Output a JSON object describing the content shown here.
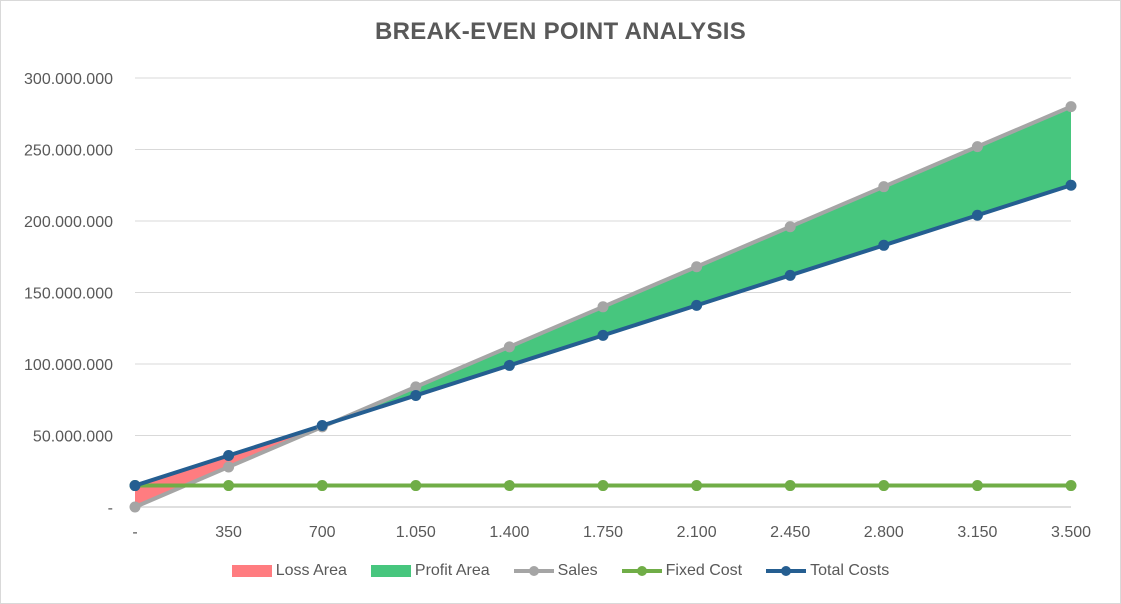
{
  "chart_data": {
    "type": "line",
    "title": "BREAK-EVEN POINT ANALYSIS",
    "xlabel": "",
    "ylabel": "",
    "x_tick_labels": [
      "-",
      "350",
      "700",
      "1.050",
      "1.400",
      "1.750",
      "2.100",
      "2.450",
      "2.800",
      "3.150",
      "3.500"
    ],
    "x": [
      0,
      350,
      700,
      1050,
      1400,
      1750,
      2100,
      2450,
      2800,
      3150,
      3500
    ],
    "xlim": [
      0,
      3500
    ],
    "y_tick_labels": [
      "-",
      "50.000.000",
      "100.000.000",
      "150.000.000",
      "200.000.000",
      "250.000.000",
      "300.000.000"
    ],
    "y_ticks": [
      0,
      50000000,
      100000000,
      150000000,
      200000000,
      250000000,
      300000000
    ],
    "ylim": [
      0,
      300000000
    ],
    "grid": true,
    "legend_position": "bottom",
    "series": [
      {
        "name": "Sales",
        "color": "#a5a5a5",
        "marker": "circle",
        "values": [
          0,
          28000000,
          56000000,
          84000000,
          112000000,
          140000000,
          168000000,
          196000000,
          224000000,
          252000000,
          280000000
        ]
      },
      {
        "name": "Fixed Cost",
        "color": "#70ad47",
        "marker": "circle",
        "values": [
          15000000,
          15000000,
          15000000,
          15000000,
          15000000,
          15000000,
          15000000,
          15000000,
          15000000,
          15000000,
          15000000
        ]
      },
      {
        "name": "Total Costs",
        "color": "#255e91",
        "marker": "circle",
        "values": [
          15000000,
          36000000,
          57000000,
          78000000,
          99000000,
          120000000,
          141000000,
          162000000,
          183000000,
          204000000,
          225000000
        ]
      }
    ],
    "areas": [
      {
        "name": "Loss Area",
        "color": "#ff7c80"
      },
      {
        "name": "Profit Area",
        "color": "#47c67e"
      }
    ]
  }
}
